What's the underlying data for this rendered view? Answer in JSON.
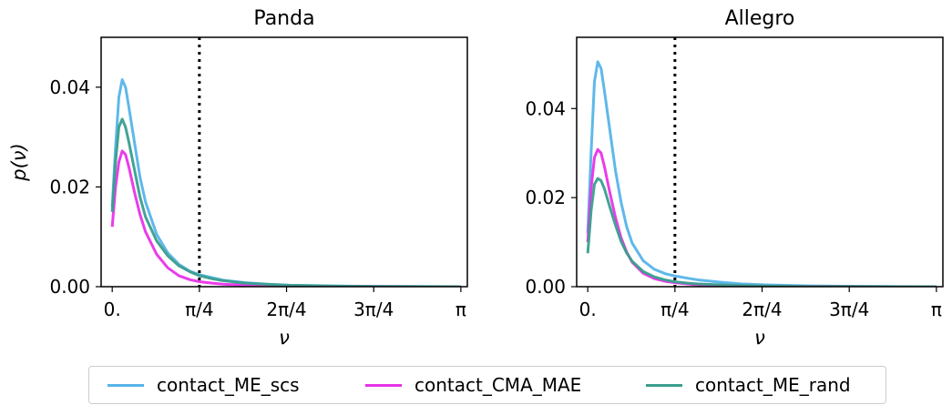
{
  "chart_data": [
    {
      "type": "line",
      "title": "Panda",
      "xlabel": "ν",
      "ylabel": "p(ν)",
      "xlim": [
        -0.1,
        3.2
      ],
      "ylim": [
        0,
        0.05
      ],
      "xticks": [
        0,
        0.785398,
        1.570796,
        2.356194,
        3.141593
      ],
      "xtick_labels": [
        "0.",
        "π/4",
        "2π/4",
        "3π/4",
        "π"
      ],
      "yticks": [
        0,
        0.02,
        0.04
      ],
      "ytick_labels": [
        "0.00",
        "0.02",
        "0.04"
      ],
      "vline": {
        "x": 0.785398,
        "style": "dotted"
      },
      "grid": false,
      "series": [
        {
          "name": "contact_ME_scs",
          "color": "#56b4e9",
          "x": [
            0.0,
            0.03,
            0.06,
            0.09,
            0.12,
            0.15,
            0.2,
            0.25,
            0.3,
            0.4,
            0.5,
            0.6,
            0.7,
            0.785,
            0.9,
            1.0,
            1.2,
            1.4,
            1.6,
            2.0,
            2.4,
            2.8,
            3.14
          ],
          "y": [
            0.016,
            0.028,
            0.038,
            0.0415,
            0.04,
            0.036,
            0.029,
            0.022,
            0.017,
            0.0105,
            0.0068,
            0.0045,
            0.0031,
            0.0024,
            0.0018,
            0.0013,
            0.0008,
            0.0005,
            0.0003,
            0.00015,
            6e-05,
            2e-05,
            0.0
          ]
        },
        {
          "name": "contact_CMA_MAE",
          "color": "#e833e8",
          "x": [
            0.0,
            0.03,
            0.06,
            0.09,
            0.12,
            0.15,
            0.2,
            0.25,
            0.3,
            0.4,
            0.5,
            0.6,
            0.7,
            0.785,
            0.9,
            1.0,
            1.2,
            1.4,
            1.6,
            2.0,
            2.4,
            2.8,
            3.14
          ],
          "y": [
            0.012,
            0.02,
            0.025,
            0.0272,
            0.0265,
            0.024,
            0.019,
            0.0145,
            0.011,
            0.0065,
            0.0038,
            0.0022,
            0.0014,
            0.001,
            0.0007,
            0.0005,
            0.0003,
            0.00018,
            0.0001,
            4e-05,
            2e-05,
            1e-05,
            0.0
          ]
        },
        {
          "name": "contact_ME_rand",
          "color": "#3a9e8e",
          "x": [
            0.0,
            0.03,
            0.06,
            0.09,
            0.12,
            0.15,
            0.2,
            0.25,
            0.3,
            0.4,
            0.5,
            0.6,
            0.7,
            0.785,
            0.9,
            1.0,
            1.2,
            1.4,
            1.6,
            2.0,
            2.4,
            2.8,
            3.14
          ],
          "y": [
            0.015,
            0.025,
            0.032,
            0.0336,
            0.032,
            0.029,
            0.0235,
            0.018,
            0.014,
            0.0092,
            0.0062,
            0.0042,
            0.003,
            0.0022,
            0.0016,
            0.0012,
            0.0007,
            0.00045,
            0.00028,
            0.00012,
            5e-05,
            2e-05,
            0.0
          ]
        }
      ]
    },
    {
      "type": "line",
      "title": "Allegro",
      "xlabel": "ν",
      "ylabel": "",
      "xlim": [
        -0.1,
        3.2
      ],
      "ylim": [
        0,
        0.056
      ],
      "xticks": [
        0,
        0.785398,
        1.570796,
        2.356194,
        3.141593
      ],
      "xtick_labels": [
        "0.",
        "π/4",
        "2π/4",
        "3π/4",
        "π"
      ],
      "yticks": [
        0,
        0.02,
        0.04
      ],
      "ytick_labels": [
        "0.00",
        "0.02",
        "0.04"
      ],
      "vline": {
        "x": 0.785398,
        "style": "dotted"
      },
      "grid": false,
      "series": [
        {
          "name": "contact_ME_scs",
          "color": "#56b4e9",
          "x": [
            0.0,
            0.03,
            0.06,
            0.09,
            0.12,
            0.15,
            0.2,
            0.25,
            0.3,
            0.35,
            0.4,
            0.5,
            0.6,
            0.7,
            0.785,
            0.9,
            1.0,
            1.2,
            1.4,
            1.6,
            2.0,
            2.4,
            2.8,
            3.14
          ],
          "y": [
            0.012,
            0.03,
            0.046,
            0.0505,
            0.049,
            0.044,
            0.035,
            0.026,
            0.019,
            0.0135,
            0.0098,
            0.0058,
            0.0039,
            0.0029,
            0.0024,
            0.0019,
            0.0015,
            0.001,
            0.0006,
            0.0004,
            0.00018,
            7e-05,
            2e-05,
            0.0
          ]
        },
        {
          "name": "contact_CMA_MAE",
          "color": "#e833e8",
          "x": [
            0.0,
            0.03,
            0.06,
            0.09,
            0.12,
            0.15,
            0.2,
            0.25,
            0.3,
            0.35,
            0.4,
            0.5,
            0.6,
            0.7,
            0.785,
            0.9,
            1.0,
            1.2,
            1.4,
            1.6,
            2.0,
            2.4,
            2.8,
            3.14
          ],
          "y": [
            0.01,
            0.022,
            0.029,
            0.0308,
            0.03,
            0.027,
            0.021,
            0.0155,
            0.011,
            0.0078,
            0.0055,
            0.003,
            0.0018,
            0.0012,
            0.0009,
            0.0006,
            0.0004,
            0.00025,
            0.00015,
            0.0001,
            4e-05,
            2e-05,
            1e-05,
            0.0
          ]
        },
        {
          "name": "contact_ME_rand",
          "color": "#3a9e8e",
          "x": [
            0.0,
            0.03,
            0.06,
            0.09,
            0.12,
            0.15,
            0.2,
            0.25,
            0.3,
            0.35,
            0.4,
            0.5,
            0.6,
            0.7,
            0.785,
            0.9,
            1.0,
            1.2,
            1.4,
            1.6,
            2.0,
            2.4,
            2.8,
            3.14
          ],
          "y": [
            0.0075,
            0.017,
            0.023,
            0.0243,
            0.0238,
            0.022,
            0.0178,
            0.0138,
            0.0102,
            0.0076,
            0.0057,
            0.0034,
            0.0022,
            0.0015,
            0.0011,
            0.0008,
            0.0006,
            0.0004,
            0.00025,
            0.00015,
            6e-05,
            2e-05,
            1e-05,
            0.0
          ]
        }
      ]
    }
  ],
  "legend": {
    "placement": "bottom-center",
    "items": [
      {
        "label": "contact_ME_scs",
        "color": "#56b4e9"
      },
      {
        "label": "contact_CMA_MAE",
        "color": "#e833e8"
      },
      {
        "label": "contact_ME_rand",
        "color": "#3a9e8e"
      }
    ]
  }
}
